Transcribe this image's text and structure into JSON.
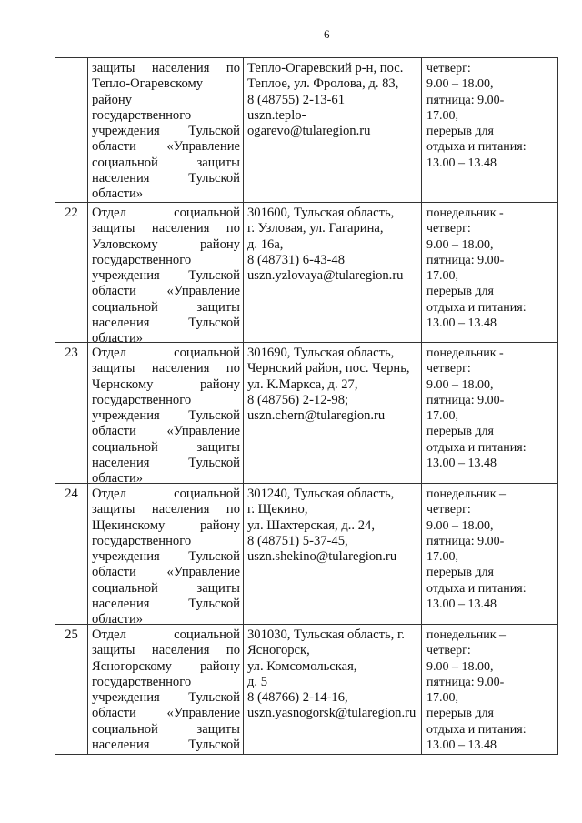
{
  "page_number": "6",
  "rows": [
    {
      "num": "",
      "org": [
        "защиты населения по",
        "Тепло-Огаревскому",
        "району",
        "государственного",
        "учреждения Тульской",
        "области «Управление",
        "социальной защиты",
        "населения Тульской",
        "области»"
      ],
      "address": [
        "Тепло-Огаревский р-н, пос.",
        "Теплое, ул. Фролова, д. 83,",
        "8 (48755) 2-13-61",
        "uszn.teplo-",
        "ogarevo@tularegion.ru"
      ],
      "hours": [
        "четверг:",
        "9.00 – 18.00,",
        "пятница: 9.00-",
        "17.00,",
        "перерыв для",
        "отдыха и питания:",
        "13.00 – 13.48"
      ]
    },
    {
      "num": "22",
      "org": [
        "Отдел социальной",
        "защиты населения по",
        "Узловскому району",
        "государственного",
        "учреждения Тульской",
        "области «Управление",
        "социальной защиты",
        "населения Тульской",
        "области»"
      ],
      "address": [
        "301600, Тульская область,",
        "г. Узловая, ул. Гагарина,",
        "д. 16а,",
        "8 (48731) 6-43-48",
        "uszn.yzlovaya@tularegion.ru"
      ],
      "hours": [
        "понедельник -",
        "четверг:",
        "9.00 – 18.00,",
        "пятница: 9.00-",
        "17.00,",
        "перерыв для",
        "отдыха и питания:",
        "13.00 – 13.48"
      ]
    },
    {
      "num": "23",
      "org": [
        "Отдел социальной",
        "защиты населения по",
        "Чернскому району",
        "государственного",
        "учреждения Тульской",
        "области «Управление",
        "социальной защиты",
        "населения Тульской",
        "области»"
      ],
      "address": [
        "301690, Тульская область,",
        "Чернский район, пос. Чернь,",
        "ул. К.Маркса, д. 27,",
        "8 (48756) 2-12-98;",
        "uszn.chern@tularegion.ru"
      ],
      "hours": [
        "понедельник -",
        "четверг:",
        "9.00 – 18.00,",
        "пятница: 9.00-",
        "17.00,",
        "перерыв для",
        "отдыха и питания:",
        "13.00 – 13.48"
      ]
    },
    {
      "num": "24",
      "org": [
        "Отдел социальной",
        "защиты населения по",
        "Щекинскому району",
        "государственного",
        "учреждения Тульской",
        "области «Управление",
        "социальной защиты",
        "населения Тульской",
        "области»"
      ],
      "address": [
        "301240, Тульская область,",
        "г. Щекино,",
        "ул. Шахтерская, д.. 24,",
        "8 (48751) 5-37-45,",
        "uszn.shekino@tularegion.ru"
      ],
      "hours": [
        "понедельник –",
        "четверг:",
        "9.00 – 18.00,",
        "пятница: 9.00-",
        "17.00,",
        "перерыв для",
        "отдыха и питания:",
        "13.00 – 13.48"
      ]
    },
    {
      "num": "25",
      "org": [
        "Отдел социальной",
        "защиты населения по",
        "Ясногорскому району",
        "государственного",
        "учреждения Тульской",
        "области «Управление",
        "социальной защиты",
        "населения Тульской"
      ],
      "address": [
        "301030, Тульская область, г.",
        "Ясногорск,",
        "ул. Комсомольская,",
        "д. 5",
        "8 (48766) 2-14-16,",
        "uszn.yasnogorsk@tularegion.ru"
      ],
      "hours": [
        "понедельник –",
        "четверг:",
        "9.00 – 18.00,",
        "пятница: 9.00-",
        "17.00,",
        "перерыв для",
        "отдыха и питания:",
        "13.00 – 13.48"
      ]
    }
  ]
}
